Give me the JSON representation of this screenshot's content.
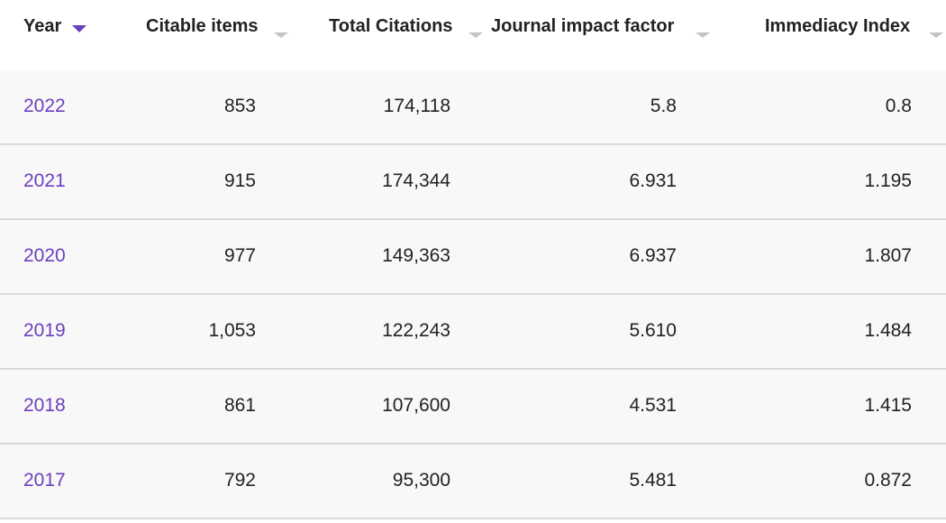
{
  "columns": [
    {
      "label": "Year"
    },
    {
      "label": "Citable items"
    },
    {
      "label": "Total Citations"
    },
    {
      "label": "Journal impact factor"
    },
    {
      "label": "Immediacy Index"
    }
  ],
  "accent_color": "#6b3fbd",
  "rows": [
    {
      "year": "2022",
      "citable_items": "853",
      "total_citations": "174,118",
      "jif": "5.8",
      "immediacy": "0.8"
    },
    {
      "year": "2021",
      "citable_items": "915",
      "total_citations": "174,344",
      "jif": "6.931",
      "immediacy": "1.195"
    },
    {
      "year": "2020",
      "citable_items": "977",
      "total_citations": "149,363",
      "jif": "6.937",
      "immediacy": "1.807"
    },
    {
      "year": "2019",
      "citable_items": "1,053",
      "total_citations": "122,243",
      "jif": "5.610",
      "immediacy": "1.484"
    },
    {
      "year": "2018",
      "citable_items": "861",
      "total_citations": "107,600",
      "jif": "4.531",
      "immediacy": "1.415"
    },
    {
      "year": "2017",
      "citable_items": "792",
      "total_citations": "95,300",
      "jif": "5.481",
      "immediacy": "0.872"
    }
  ]
}
